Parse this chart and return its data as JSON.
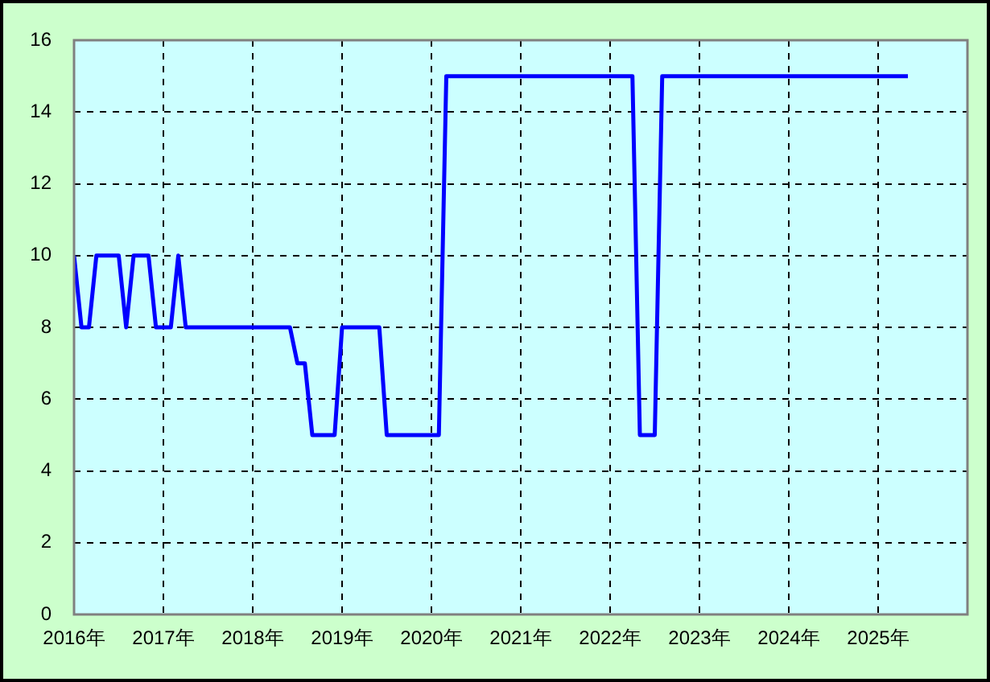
{
  "chart_data": {
    "type": "line",
    "x": [
      "2016-01",
      "2016-02",
      "2016-03",
      "2016-04",
      "2016-07",
      "2016-08",
      "2016-09",
      "2016-11",
      "2016-12",
      "2017-02",
      "2017-03",
      "2017-04",
      "2018-06",
      "2018-07",
      "2018-08",
      "2018-09",
      "2018-12",
      "2019-01",
      "2019-06",
      "2019-07",
      "2020-02",
      "2020-03",
      "2022-04",
      "2022-05",
      "2022-07",
      "2022-08",
      "2025-05"
    ],
    "series": [
      {
        "color": "#0000ff",
        "values": [
          10,
          8,
          8,
          10,
          10,
          8,
          10,
          10,
          8,
          8,
          10,
          8,
          8,
          7,
          7,
          5,
          5,
          8,
          8,
          5,
          5,
          15,
          15,
          5,
          5,
          15,
          15
        ]
      }
    ],
    "xlim": [
      "2016",
      "2026"
    ],
    "xticks": [
      {
        "value": "2016",
        "label": "2016年"
      },
      {
        "value": "2017",
        "label": "2017年"
      },
      {
        "value": "2018",
        "label": "2018年"
      },
      {
        "value": "2019",
        "label": "2019年"
      },
      {
        "value": "2020",
        "label": "2020年"
      },
      {
        "value": "2021",
        "label": "2021年"
      },
      {
        "value": "2022",
        "label": "2022年"
      },
      {
        "value": "2023",
        "label": "2023年"
      },
      {
        "value": "2024",
        "label": "2024年"
      },
      {
        "value": "2025",
        "label": "2025年"
      }
    ],
    "ylim": [
      0,
      16
    ],
    "yticks": [
      0,
      2,
      4,
      6,
      8,
      10,
      12,
      14,
      16
    ],
    "grid": true,
    "legend": false,
    "marker": "none",
    "line_style": "solid"
  }
}
